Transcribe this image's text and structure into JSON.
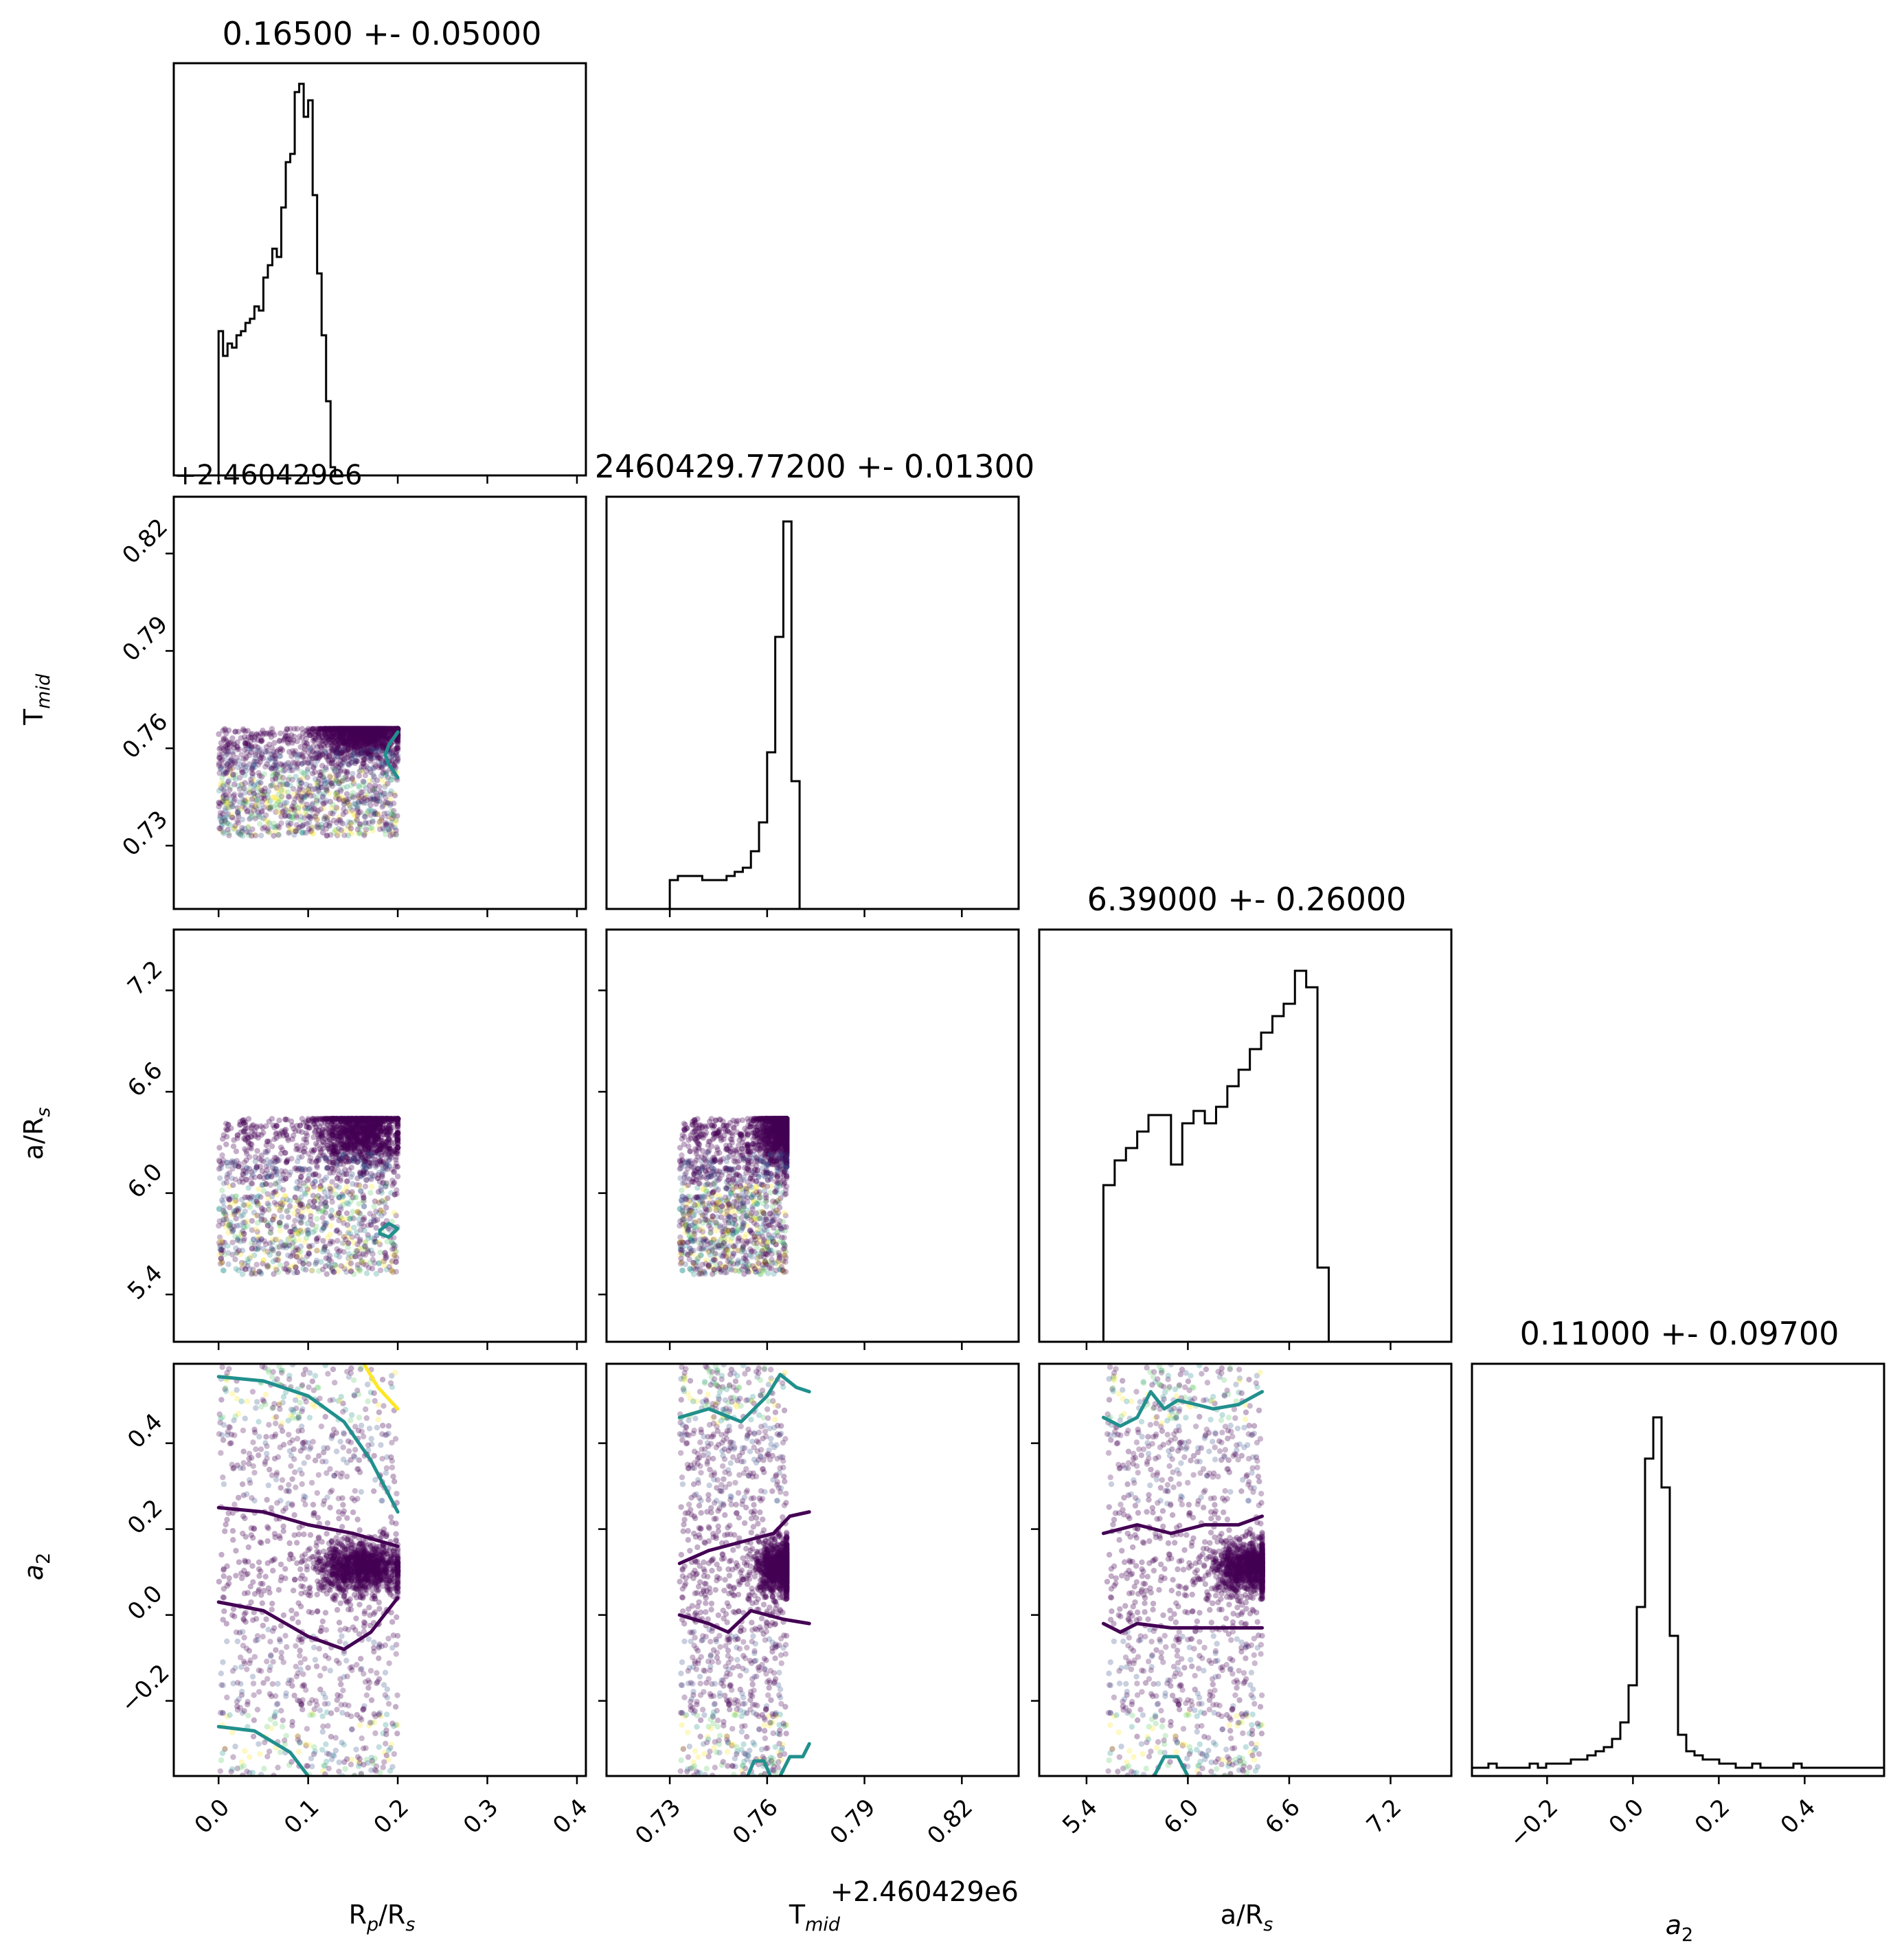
{
  "chart_data": {
    "type": "corner",
    "parameters": [
      {
        "key": "rp",
        "label": "R",
        "label_sub": "p",
        "label_tail": "/R",
        "label_tail_sub": "s"
      },
      {
        "key": "tmid",
        "label": "T",
        "label_sub": "mid",
        "label_tail": "",
        "label_tail_sub": ""
      },
      {
        "key": "ars",
        "label": "a/R",
        "label_sub": "s",
        "label_tail": "",
        "label_tail_sub": ""
      },
      {
        "key": "a2",
        "label": "a",
        "label_sub": "2",
        "label_tail": "",
        "label_tail_sub": "",
        "italic": true
      }
    ],
    "titles": [
      "0.16500 +- 0.05000",
      "2460429.77200 +- 0.01300",
      "6.39000 +- 0.26000",
      "0.11000 +- 0.09700"
    ],
    "ranges": [
      [
        -0.05,
        0.41
      ],
      [
        2460429.7105,
        2460429.8375
      ],
      [
        5.12,
        7.56
      ],
      [
        -0.375,
        0.585
      ]
    ],
    "ticks": [
      {
        "values": [
          0.0,
          0.1,
          0.2,
          0.3,
          0.4
        ],
        "labels": [
          "0.0",
          "0.1",
          "0.2",
          "0.3",
          "0.4"
        ]
      },
      {
        "values": [
          2460429.73,
          2460429.76,
          2460429.79,
          2460429.82
        ],
        "labels": [
          "0.73",
          "0.76",
          "0.79",
          "0.82"
        ]
      },
      {
        "values": [
          5.4,
          6.0,
          6.6,
          7.2
        ],
        "labels": [
          "5.4",
          "6.0",
          "6.6",
          "7.2"
        ]
      },
      {
        "values": [
          -0.2,
          0.0,
          0.2,
          0.4
        ],
        "labels": [
          "−0.2",
          "0.0",
          "0.2",
          "0.4"
        ]
      }
    ],
    "offset_text": "+2.460429e6",
    "histograms": [
      {
        "edges_start": 0.0,
        "bin_width": 0.005,
        "counts": [
          0.35,
          0.29,
          0.32,
          0.31,
          0.34,
          0.35,
          0.37,
          0.38,
          0.41,
          0.4,
          0.48,
          0.51,
          0.55,
          0.53,
          0.65,
          0.76,
          0.78,
          0.93,
          0.95,
          0.87,
          0.91,
          0.68,
          0.49,
          0.34,
          0.18,
          0.02,
          0,
          0,
          0,
          0
        ]
      },
      {
        "edges_start": 2460429.73,
        "bin_width": 0.0025,
        "counts": [
          0.07,
          0.08,
          0.08,
          0.08,
          0.07,
          0.07,
          0.07,
          0.08,
          0.09,
          0.1,
          0.14,
          0.21,
          0.38,
          0.66,
          0.94,
          0.31,
          0,
          0,
          0,
          0
        ]
      },
      {
        "edges_start": 5.5,
        "bin_width": 0.0667,
        "counts": [
          0.38,
          0.44,
          0.47,
          0.51,
          0.55,
          0.55,
          0.43,
          0.53,
          0.56,
          0.53,
          0.57,
          0.62,
          0.66,
          0.71,
          0.75,
          0.79,
          0.82,
          0.9,
          0.86,
          0.18,
          0,
          0,
          0
        ]
      },
      {
        "edges_start": -0.375,
        "bin_width": 0.0192,
        "counts": [
          0.02,
          0.02,
          0.03,
          0.02,
          0.02,
          0.02,
          0.02,
          0.03,
          0.02,
          0.03,
          0.03,
          0.03,
          0.04,
          0.04,
          0.05,
          0.06,
          0.07,
          0.09,
          0.13,
          0.22,
          0.41,
          0.77,
          0.87,
          0.7,
          0.34,
          0.1,
          0.06,
          0.05,
          0.04,
          0.04,
          0.03,
          0.03,
          0.02,
          0.02,
          0.03,
          0.02,
          0.02,
          0.02,
          0.02,
          0.03,
          0.02,
          0.02,
          0.02,
          0.02,
          0.02,
          0.02,
          0.02,
          0.02,
          0.02,
          0.02
        ]
      }
    ],
    "sample_extent": [
      [
        0.0,
        0.2
      ],
      [
        2460429.733,
        2460429.766
      ],
      [
        5.52,
        6.44
      ],
      [
        -0.375,
        0.585
      ]
    ],
    "sample_peaks": [
      0.16,
      2460429.765,
      6.38,
      0.11
    ],
    "contours": {
      "1_0": [
        {
          "color": "#21908d",
          "points": [
            [
              0.2,
              2460429.765
            ],
            [
              0.19,
              2460429.761
            ],
            [
              0.186,
              2460429.758
            ],
            [
              0.19,
              2460429.755
            ],
            [
              0.2,
              2460429.751
            ]
          ]
        }
      ],
      "2_0": [
        {
          "color": "#21908d",
          "points": [
            [
              0.18,
              5.78
            ],
            [
              0.19,
              5.82
            ],
            [
              0.2,
              5.79
            ],
            [
              0.19,
              5.74
            ],
            [
              0.18,
              5.76
            ],
            [
              0.18,
              5.78
            ]
          ]
        }
      ],
      "3_0": [
        {
          "color": "#fde725",
          "points": [
            [
              0.162,
              0.585
            ],
            [
              0.178,
              0.53
            ],
            [
              0.2,
              0.48
            ]
          ]
        },
        {
          "color": "#21908d",
          "points": [
            [
              0.0,
              0.555
            ],
            [
              0.05,
              0.545
            ],
            [
              0.1,
              0.51
            ],
            [
              0.14,
              0.45
            ],
            [
              0.17,
              0.36
            ],
            [
              0.2,
              0.24
            ]
          ]
        },
        {
          "color": "#440154",
          "points": [
            [
              0.0,
              0.25
            ],
            [
              0.05,
              0.24
            ],
            [
              0.1,
              0.21
            ],
            [
              0.15,
              0.19
            ],
            [
              0.2,
              0.16
            ]
          ]
        },
        {
          "color": "#440154",
          "points": [
            [
              0.0,
              0.03
            ],
            [
              0.05,
              0.01
            ],
            [
              0.1,
              -0.05
            ],
            [
              0.14,
              -0.08
            ],
            [
              0.17,
              -0.04
            ],
            [
              0.2,
              0.04
            ]
          ]
        },
        {
          "color": "#21908d",
          "points": [
            [
              0.0,
              -0.26
            ],
            [
              0.04,
              -0.27
            ],
            [
              0.08,
              -0.32
            ],
            [
              0.1,
              -0.375
            ]
          ]
        }
      ],
      "3_1": [
        {
          "color": "#21908d",
          "points": [
            [
              2460429.733,
              0.46
            ],
            [
              2460429.742,
              0.48
            ],
            [
              2460429.752,
              0.45
            ],
            [
              2460429.76,
              0.51
            ],
            [
              2460429.764,
              0.56
            ],
            [
              2460429.769,
              0.53
            ],
            [
              2460429.773,
              0.52
            ]
          ]
        },
        {
          "color": "#440154",
          "points": [
            [
              2460429.733,
              0.12
            ],
            [
              2460429.742,
              0.15
            ],
            [
              2460429.752,
              0.17
            ],
            [
              2460429.762,
              0.19
            ],
            [
              2460429.767,
              0.23
            ],
            [
              2460429.773,
              0.24
            ]
          ]
        },
        {
          "color": "#440154",
          "points": [
            [
              2460429.733,
              0.0
            ],
            [
              2460429.742,
              -0.02
            ],
            [
              2460429.748,
              -0.04
            ],
            [
              2460429.755,
              0.01
            ],
            [
              2460429.765,
              -0.01
            ],
            [
              2460429.773,
              -0.02
            ]
          ]
        },
        {
          "color": "#21908d",
          "points": [
            [
              2460429.754,
              -0.375
            ],
            [
              2460429.756,
              -0.34
            ],
            [
              2460429.759,
              -0.34
            ],
            [
              2460429.761,
              -0.375
            ]
          ]
        },
        {
          "color": "#21908d",
          "points": [
            [
              2460429.764,
              -0.375
            ],
            [
              2460429.767,
              -0.33
            ],
            [
              2460429.771,
              -0.33
            ],
            [
              2460429.773,
              -0.3
            ]
          ]
        }
      ],
      "3_2": [
        {
          "color": "#21908d",
          "points": [
            [
              5.5,
              0.46
            ],
            [
              5.6,
              0.44
            ],
            [
              5.7,
              0.46
            ],
            [
              5.78,
              0.52
            ],
            [
              5.86,
              0.48
            ],
            [
              5.94,
              0.5
            ],
            [
              6.05,
              0.49
            ],
            [
              6.15,
              0.48
            ],
            [
              6.3,
              0.49
            ],
            [
              6.44,
              0.52
            ]
          ]
        },
        {
          "color": "#440154",
          "points": [
            [
              5.5,
              0.19
            ],
            [
              5.7,
              0.21
            ],
            [
              5.9,
              0.19
            ],
            [
              6.1,
              0.21
            ],
            [
              6.3,
              0.21
            ],
            [
              6.44,
              0.23
            ]
          ]
        },
        {
          "color": "#440154",
          "points": [
            [
              5.5,
              -0.02
            ],
            [
              5.6,
              -0.04
            ],
            [
              5.7,
              -0.02
            ],
            [
              5.9,
              -0.03
            ],
            [
              6.1,
              -0.03
            ],
            [
              6.3,
              -0.03
            ],
            [
              6.44,
              -0.03
            ]
          ]
        },
        {
          "color": "#21908d",
          "points": [
            [
              5.8,
              -0.375
            ],
            [
              5.86,
              -0.33
            ],
            [
              5.94,
              -0.33
            ],
            [
              6.0,
              -0.375
            ]
          ]
        }
      ]
    },
    "grid": false,
    "legend": "none"
  }
}
